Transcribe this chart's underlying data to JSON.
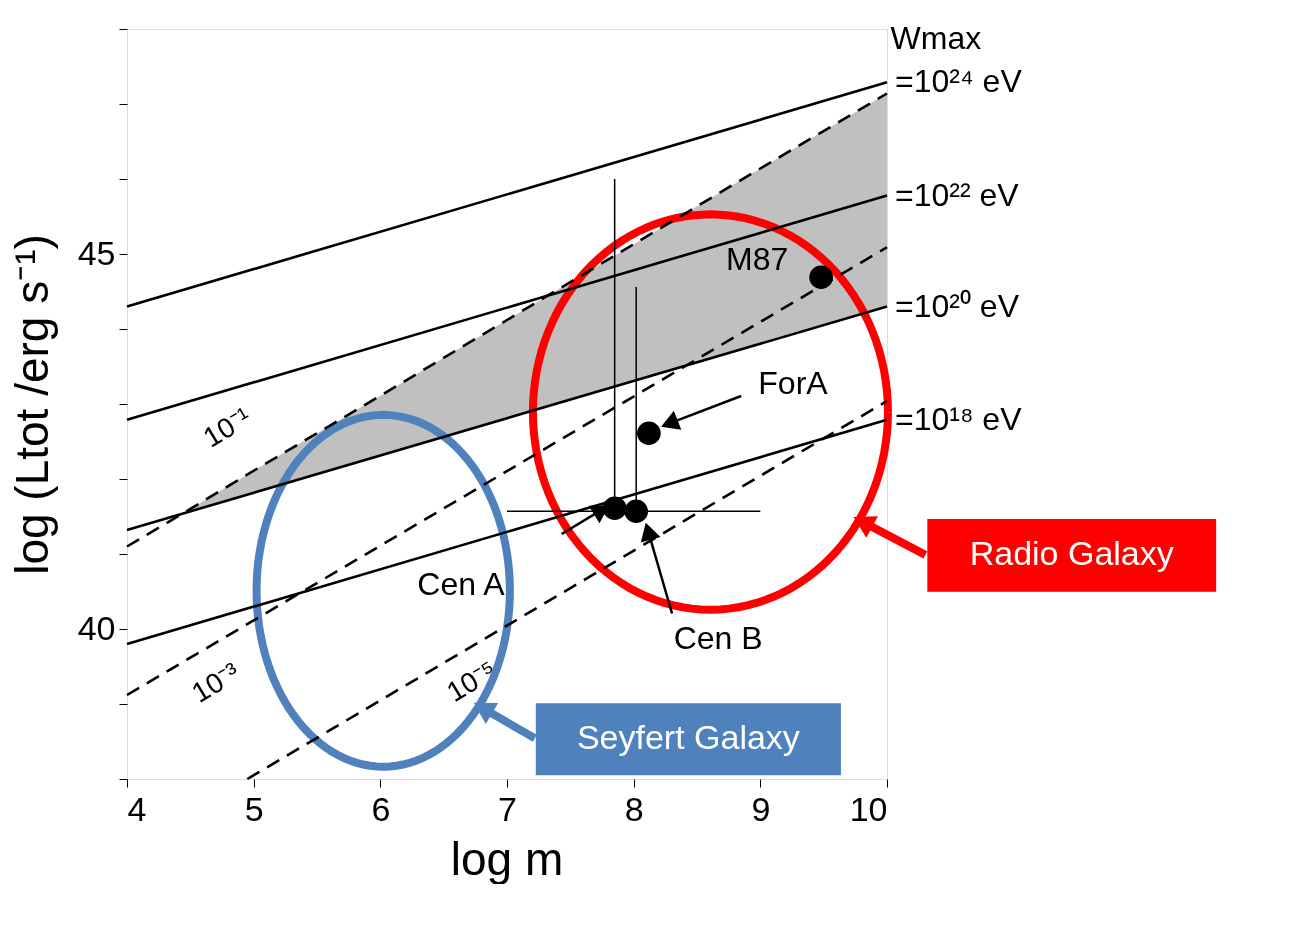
{
  "chart_data": {
    "type": "line",
    "xlabel": "log m",
    "ylabel": "log (Ltot /erg s⁻¹)",
    "xlim": [
      4,
      10
    ],
    "ylim": [
      38,
      48
    ],
    "xticks": [
      4,
      5,
      6,
      7,
      8,
      9,
      10
    ],
    "yticks": [
      {
        "value": 38,
        "label": null
      },
      {
        "value": 39,
        "label": null
      },
      40,
      {
        "value": 41,
        "label": null
      },
      {
        "value": 42,
        "label": null
      },
      {
        "value": 43,
        "label": null
      },
      {
        "value": 44,
        "label": null
      },
      45,
      {
        "value": 46,
        "label": null
      },
      {
        "value": 47,
        "label": null
      },
      {
        "value": 48,
        "label": null
      }
    ],
    "grid": false,
    "series": [
      {
        "color": "#000000",
        "line_style": "solid",
        "x": [
          4,
          10
        ],
        "values": [
          44.3,
          47.29
        ]
      },
      {
        "color": "#000000",
        "line_style": "solid",
        "x": [
          4,
          10
        ],
        "values": [
          42.79,
          45.78
        ]
      },
      {
        "color": "#000000",
        "line_style": "solid",
        "x": [
          4,
          10
        ],
        "values": [
          41.32,
          44.3
        ]
      },
      {
        "color": "#000000",
        "line_style": "solid",
        "x": [
          4,
          10
        ],
        "values": [
          39.8,
          42.79
        ]
      },
      {
        "color": "#000000",
        "line_style": "dashed",
        "x": [
          4,
          4.44,
          5,
          6,
          7,
          8,
          9,
          10
        ],
        "values": [
          41.1,
          41.54,
          42.11,
          43.11,
          44.12,
          45.13,
          46.14,
          47.14
        ],
        "lower": [
          null,
          41.54,
          41.82,
          42.32,
          42.81,
          43.31,
          43.81,
          44.3
        ],
        "upper": [
          null,
          41.54,
          42.11,
          43.11,
          44.12,
          45.13,
          46.14,
          47.14
        ]
      },
      {
        "color": "#000000",
        "line_style": "dashed",
        "x": [
          4,
          10
        ],
        "values": [
          39.12,
          45.09
        ]
      },
      {
        "color": "#000000",
        "line_style": "dashed",
        "x": [
          4.95,
          10
        ],
        "values": [
          38,
          43.04
        ]
      },
      {
        "type": "scatter",
        "color": "#000000",
        "marker": "circle",
        "x": [
          9.48,
          8.12,
          7.85,
          8.02
        ],
        "values": [
          44.69,
          42.61,
          41.61,
          41.57
        ],
        "errors": [
          null,
          null,
          [
            41.61,
            46.0
          ],
          [
            41.57,
            44.56
          ]
        ],
        "xerrors": [
          null,
          null,
          null,
          [
            7.0,
            9.0
          ]
        ]
      }
    ],
    "annotations": [
      {
        "text": "M87",
        "x": 9.48,
        "y": 44.69
      },
      "ForA",
      "Cen A",
      "Cen B",
      {
        "text": "10⁻¹",
        "x": 5.0,
        "y": 42.1
      },
      {
        "text": "10⁻³",
        "x": 4.6,
        "y": 39.72
      },
      {
        "text": "10⁻⁵",
        "x": 6.6,
        "y": 39.64
      },
      "Wmax",
      {
        "text": "=10²⁴ eV",
        "x": 10,
        "y": 47.29
      },
      {
        "text": "=10²² eV",
        "x": 10,
        "y": 45.78
      },
      {
        "text": "=10²⁰ eV",
        "x": 10,
        "y": 44.3
      },
      {
        "text": "=10¹⁸ eV",
        "x": 10,
        "y": 42.79
      },
      "Radio Galaxy",
      "Seyfert Galaxy"
    ]
  }
}
